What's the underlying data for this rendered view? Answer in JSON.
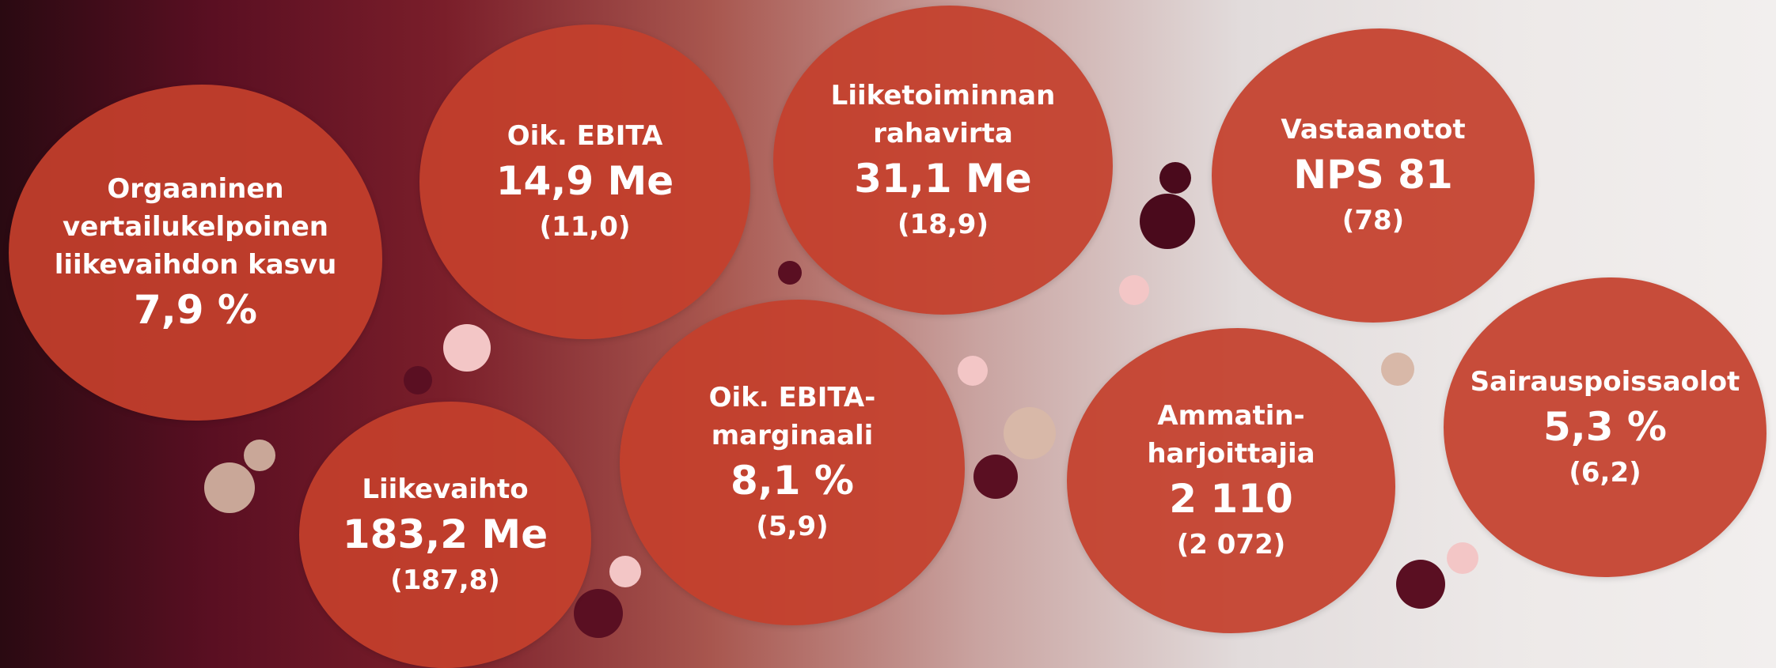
{
  "bubbles": [
    {
      "label": [
        "Orgaaninen",
        "vertailukelpoinen",
        "liikevaihdon kasvu"
      ],
      "value": "7,9 %"
    },
    {
      "label": [
        "Oik. EBITA"
      ],
      "value": "14,9 Me",
      "previous": "(11,0)"
    },
    {
      "label": [
        "Liiketoiminnan",
        "rahavirta"
      ],
      "value": "31,1 Me",
      "previous": "(18,9)"
    },
    {
      "label": [
        "Vastaanotot"
      ],
      "value": "NPS 81",
      "previous": "(78)"
    },
    {
      "label": [
        "Liikevaihto"
      ],
      "value": "183,2 Me",
      "previous": "(187,8)"
    },
    {
      "label": [
        "Oik. EBITA-",
        "marginaali"
      ],
      "value": "8,1 %",
      "previous": "(5,9)"
    },
    {
      "label": [
        "Ammatin-",
        "harjoittajia"
      ],
      "value": "2 110",
      "previous": "(2 072)"
    },
    {
      "label": [
        "Sairauspoissaolot"
      ],
      "value": "5,3 %",
      "previous": "(6,2)"
    }
  ]
}
